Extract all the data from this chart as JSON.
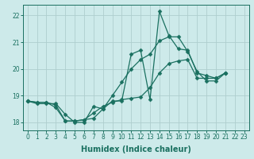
{
  "xlabel": "Humidex (Indice chaleur)",
  "background_color": "#cdeaea",
  "grid_color": "#aecece",
  "line_color": "#1a7060",
  "xlim": [
    -0.5,
    23.5
  ],
  "ylim": [
    17.7,
    22.4
  ],
  "yticks": [
    18,
    19,
    20,
    21,
    22
  ],
  "xticks": [
    0,
    1,
    2,
    3,
    4,
    5,
    6,
    7,
    8,
    9,
    10,
    11,
    12,
    13,
    14,
    15,
    16,
    17,
    18,
    19,
    20,
    21,
    22,
    23
  ],
  "series": [
    [
      18.8,
      18.7,
      18.7,
      18.7,
      18.3,
      18.0,
      18.0,
      18.6,
      18.5,
      18.8,
      18.8,
      20.55,
      20.7,
      18.85,
      22.15,
      21.25,
      20.75,
      20.7,
      19.85,
      19.75,
      19.65,
      19.85
    ],
    [
      18.8,
      18.75,
      18.75,
      18.55,
      18.05,
      18.05,
      18.1,
      18.35,
      18.6,
      18.75,
      18.85,
      18.9,
      18.95,
      19.3,
      19.85,
      20.2,
      20.3,
      20.35,
      19.65,
      19.65,
      19.65,
      19.85
    ],
    [
      18.8,
      18.75,
      18.75,
      18.65,
      18.05,
      18.05,
      18.1,
      18.15,
      18.5,
      19.0,
      19.5,
      20.0,
      20.35,
      20.55,
      21.05,
      21.2,
      21.2,
      20.65,
      19.9,
      19.55,
      19.55,
      19.85
    ]
  ],
  "x_start": 0,
  "marker": "D",
  "markersize": 2.5,
  "linewidth": 0.9,
  "fontsize_ticks": 5.5,
  "fontsize_xlabel": 7.0
}
